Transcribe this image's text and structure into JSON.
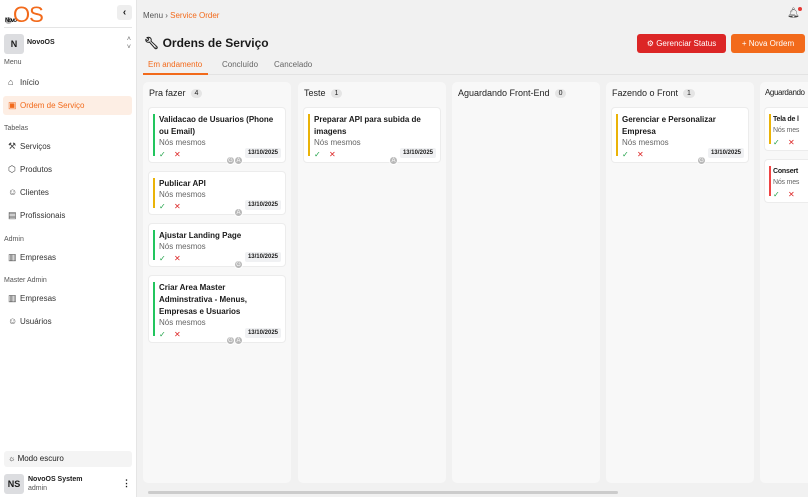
{
  "sidebar": {
    "logo": "NovoOS",
    "org": {
      "initial": "N",
      "name": "NovoOS"
    },
    "sections": {
      "menu": "Menu",
      "tabelas": "Tabelas",
      "admin": "Admin",
      "master": "Master Admin"
    },
    "items": [
      {
        "label": "Início",
        "icon": "home-icon"
      },
      {
        "label": "Ordem de Serviço",
        "icon": "clipboard-icon",
        "active": true
      },
      {
        "label": "Serviços",
        "icon": "wrench-icon"
      },
      {
        "label": "Produtos",
        "icon": "box-icon"
      },
      {
        "label": "Clientes",
        "icon": "users-icon"
      },
      {
        "label": "Profissionais",
        "icon": "id-card-icon"
      },
      {
        "label": "Empresas",
        "icon": "building-icon"
      },
      {
        "label": "Empresas",
        "icon": "building-icon"
      },
      {
        "label": "Usuários",
        "icon": "user-icon"
      }
    ],
    "dark_mode": "Modo escuro",
    "user": {
      "initials": "NS",
      "name": "NovoOS System",
      "role": "admin"
    }
  },
  "breadcrumb": {
    "root": "Menu",
    "current": "Service Order"
  },
  "page": {
    "title": "Ordens de Serviço",
    "manage_status": "Gerenciar Status",
    "new_order": "Nova Ordem"
  },
  "tabs": [
    "Em andamento",
    "Concluído",
    "Cancelado"
  ],
  "colors": {
    "accent": "#f26a1b",
    "danger": "#dc2626",
    "green": "#22c55e",
    "yellow": "#eab308",
    "red": "#ef4444"
  },
  "columns": [
    {
      "title": "Pra fazer",
      "count": "4",
      "cards": [
        {
          "title": "Validacao de Usuarios (Phone ou Email)",
          "owner": "Nós mesmos",
          "avatars": [
            "G",
            "A"
          ],
          "date": "13/10/2025"
        },
        {
          "title": "Publicar API",
          "owner": "Nós mesmos",
          "avatars": [
            "A"
          ],
          "date": "13/10/2025"
        },
        {
          "title": "Ajustar Landing Page",
          "owner": "Nós mesmos",
          "avatars": [
            "G"
          ],
          "date": "13/10/2025"
        },
        {
          "title": "Criar Area Master Adminstrativa - Menus, Empresas e Usuarios",
          "owner": "Nós mesmos",
          "avatars": [
            "G",
            "A"
          ],
          "date": "13/10/2025"
        }
      ]
    },
    {
      "title": "Teste",
      "count": "1",
      "cards": [
        {
          "title": "Preparar API para subida de imagens",
          "owner": "Nós mesmos",
          "avatars": [
            "A"
          ],
          "date": "13/10/2025"
        }
      ]
    },
    {
      "title": "Aguardando Front-End",
      "count": "0",
      "cards": []
    },
    {
      "title": "Fazendo o Front",
      "count": "1",
      "cards": [
        {
          "title": "Gerenciar e Personalizar Empresa",
          "owner": "Nós mesmos",
          "avatars": [
            "G"
          ],
          "date": "13/10/2025"
        }
      ]
    },
    {
      "title": "Aguardando",
      "count": "",
      "cards": [
        {
          "title": "Tela de l",
          "owner": "Nós mes"
        },
        {
          "title": "Consert",
          "owner": "Nós mes"
        }
      ]
    }
  ]
}
